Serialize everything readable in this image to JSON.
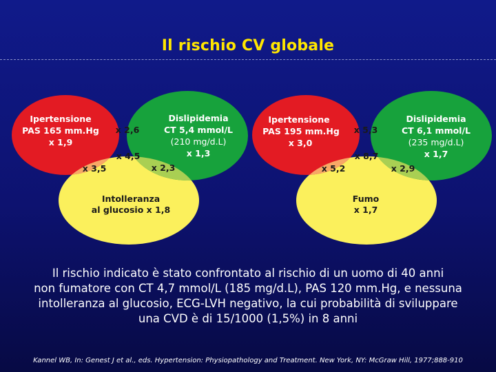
{
  "title": "Il rischio CV globale",
  "colors": {
    "hypertension": "#e31b23",
    "dyslipidemia": "#17a23c",
    "third_factor": "#fbf05c",
    "overlap_hyp_dys": "#c8792c",
    "overlap_hyp_third": "#f7a866",
    "overlap_dys_third": "#a9cf53",
    "center": "#ffffff",
    "title": "#ffe600"
  },
  "diagrams": [
    {
      "hypertension": {
        "name": "Ipertensione",
        "value": "PAS 165 mm.Hg",
        "factor": "x 1,9"
      },
      "dyslipidemia": {
        "name": "Dislipidemia",
        "value": "CT 5,4 mmol/L",
        "value_alt": "(210 mg/d.L)",
        "factor": "x 1,3"
      },
      "third": {
        "line1": "Intolleranza",
        "line2": "al glucosio x 1,8"
      },
      "overlap_hyp_dys": "x 2,6",
      "overlap_hyp_third": "x 3,5",
      "overlap_dys_third": "x 2,3",
      "center": "x 4,5"
    },
    {
      "hypertension": {
        "name": "Ipertensione",
        "value": "PAS 195 mm.Hg",
        "factor": "x 3,0"
      },
      "dyslipidemia": {
        "name": "Dislipidemia",
        "value": "CT 6,1 mmol/L",
        "value_alt": "(235 mg/d.L)",
        "factor": "x 1,7"
      },
      "third": {
        "line1": "Fumo",
        "line2": "x 1,7"
      },
      "overlap_hyp_dys": "x 5,3",
      "overlap_hyp_third": "x 5,2",
      "overlap_dys_third": "x 2,9",
      "center": "x 8,7"
    }
  ],
  "note": {
    "line1": "Il rischio indicato è stato confrontato al rischio di un uomo di 40 anni",
    "line2": "non fumatore con CT 4,7 mmol/L (185 mg/d.L), PAS 120 mm.Hg, e nessuna",
    "line3": "intolleranza al glucosio, ECG-LVH negativo, la cui probabilità di sviluppare",
    "line4": "una CVD è di 15/1000 (1,5%) in 8 anni"
  },
  "source": "Kannel WB, In: Genest J et al., eds. Hypertension: Physiopathology and Treatment. New York, NY: McGraw Hill, 1977;888-910"
}
